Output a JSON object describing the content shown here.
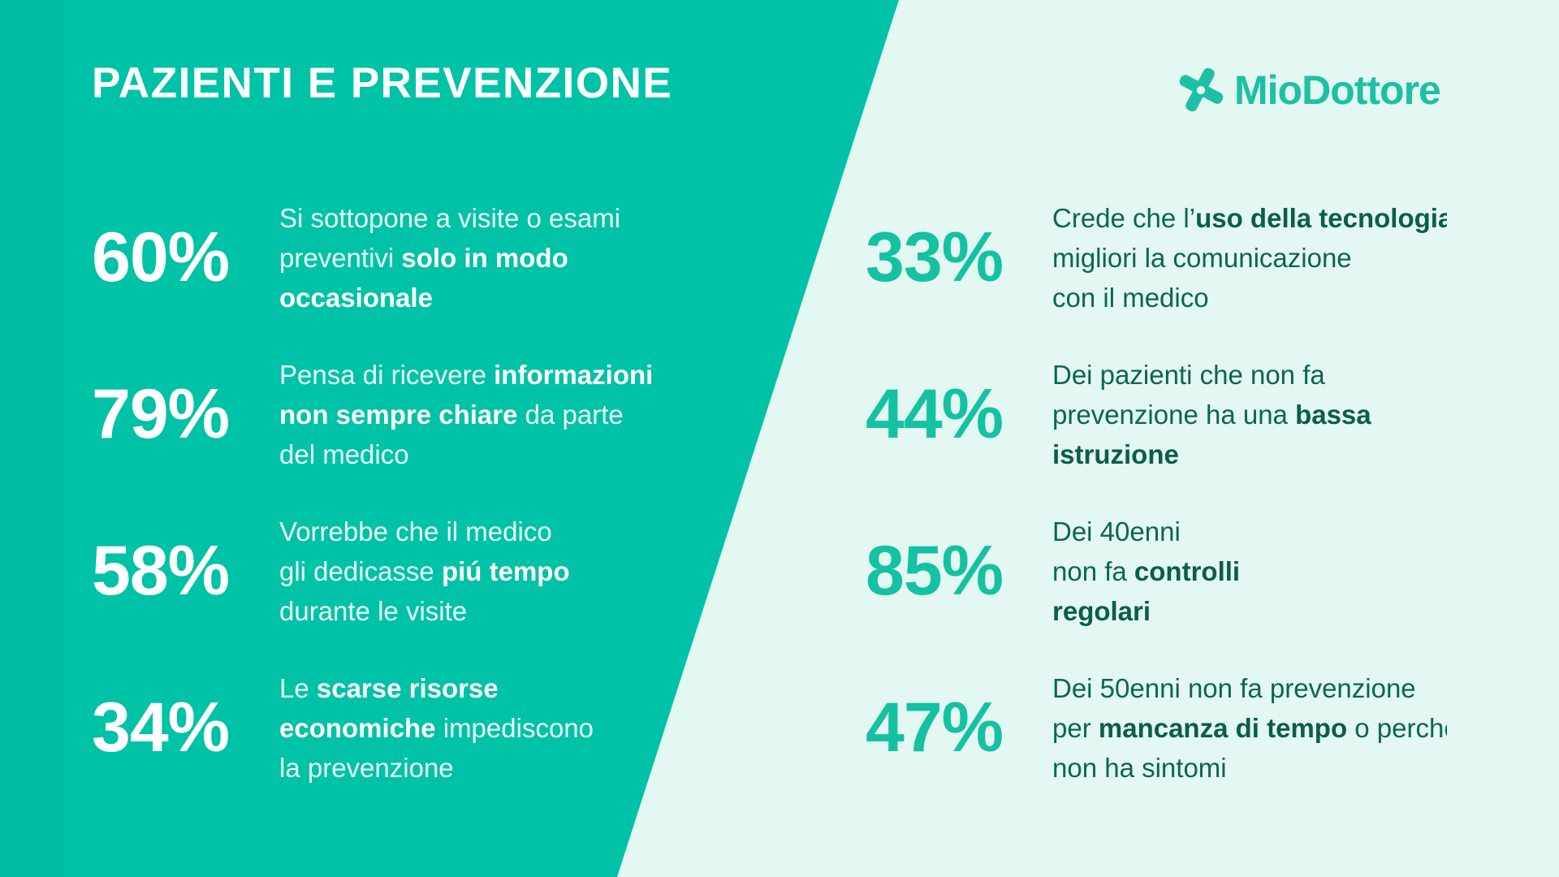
{
  "colors": {
    "left_panel": "#00c2a6",
    "right_panel": "#e3f7f3",
    "accent": "#14c2a1",
    "dark_text": "#0b5d4b"
  },
  "title": "PAZIENTI E PREVENZIONE",
  "logo": {
    "text": "MioDottore",
    "icon": "medical-cross-icon"
  },
  "left_stats": [
    {
      "value": "60%",
      "lines": [
        [
          {
            "t": "Si sottopone a visite o esami",
            "b": false
          }
        ],
        [
          {
            "t": "preventivi ",
            "b": false
          },
          {
            "t": "solo in modo",
            "b": true
          }
        ],
        [
          {
            "t": "occasionale",
            "b": true
          }
        ]
      ]
    },
    {
      "value": "79%",
      "lines": [
        [
          {
            "t": "Pensa di ricevere ",
            "b": false
          },
          {
            "t": "informazioni",
            "b": true
          }
        ],
        [
          {
            "t": "non sempre chiare",
            "b": true
          },
          {
            "t": " da parte",
            "b": false
          }
        ],
        [
          {
            "t": "del medico",
            "b": false
          }
        ]
      ]
    },
    {
      "value": "58%",
      "lines": [
        [
          {
            "t": "Vorrebbe che il medico",
            "b": false
          }
        ],
        [
          {
            "t": "gli dedicasse ",
            "b": false
          },
          {
            "t": "piú tempo",
            "b": true
          }
        ],
        [
          {
            "t": "durante le visite",
            "b": false
          }
        ]
      ]
    },
    {
      "value": "34%",
      "lines": [
        [
          {
            "t": "Le ",
            "b": false
          },
          {
            "t": "scarse risorse",
            "b": true
          }
        ],
        [
          {
            "t": "economiche",
            "b": true
          },
          {
            "t": " impediscono",
            "b": false
          }
        ],
        [
          {
            "t": "la prevenzione",
            "b": false
          }
        ]
      ]
    }
  ],
  "right_stats": [
    {
      "value": "33%",
      "lines": [
        [
          {
            "t": "Crede che l’",
            "b": false
          },
          {
            "t": "uso della tecnologia",
            "b": true
          }
        ],
        [
          {
            "t": "migliori la comunicazione",
            "b": false
          }
        ],
        [
          {
            "t": "con il medico",
            "b": false
          }
        ]
      ]
    },
    {
      "value": "44%",
      "lines": [
        [
          {
            "t": "Dei pazienti che non fa",
            "b": false
          }
        ],
        [
          {
            "t": "prevenzione ha una ",
            "b": false
          },
          {
            "t": "bassa",
            "b": true
          }
        ],
        [
          {
            "t": "istruzione",
            "b": true
          }
        ]
      ]
    },
    {
      "value": "85%",
      "lines": [
        [
          {
            "t": "Dei 40enni",
            "b": false
          }
        ],
        [
          {
            "t": "non fa ",
            "b": false
          },
          {
            "t": "controlli",
            "b": true
          }
        ],
        [
          {
            "t": "regolari",
            "b": true
          }
        ]
      ]
    },
    {
      "value": "47%",
      "lines": [
        [
          {
            "t": "Dei 50enni non fa prevenzione",
            "b": false
          }
        ],
        [
          {
            "t": "per ",
            "b": false
          },
          {
            "t": "mancanza di tempo",
            "b": true
          },
          {
            "t": " o perché",
            "b": false
          }
        ],
        [
          {
            "t": "non ha sintomi",
            "b": false
          }
        ]
      ]
    }
  ]
}
